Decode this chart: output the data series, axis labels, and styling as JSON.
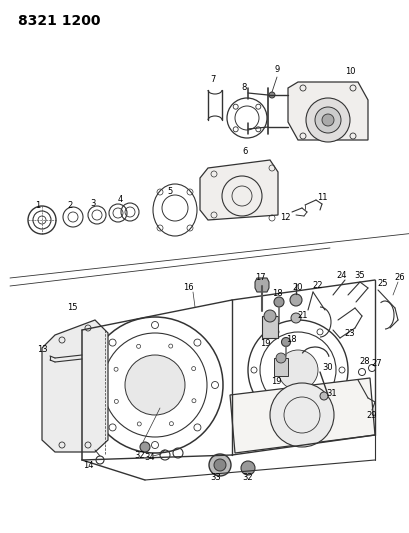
{
  "title": "8321 1200",
  "bg_color": "#ffffff",
  "line_color": "#333333",
  "label_color": "#000000",
  "label_fontsize": 6.0,
  "fig_width": 4.1,
  "fig_height": 5.33,
  "dpi": 100,
  "title_fontsize": 10,
  "title_fontweight": "bold"
}
